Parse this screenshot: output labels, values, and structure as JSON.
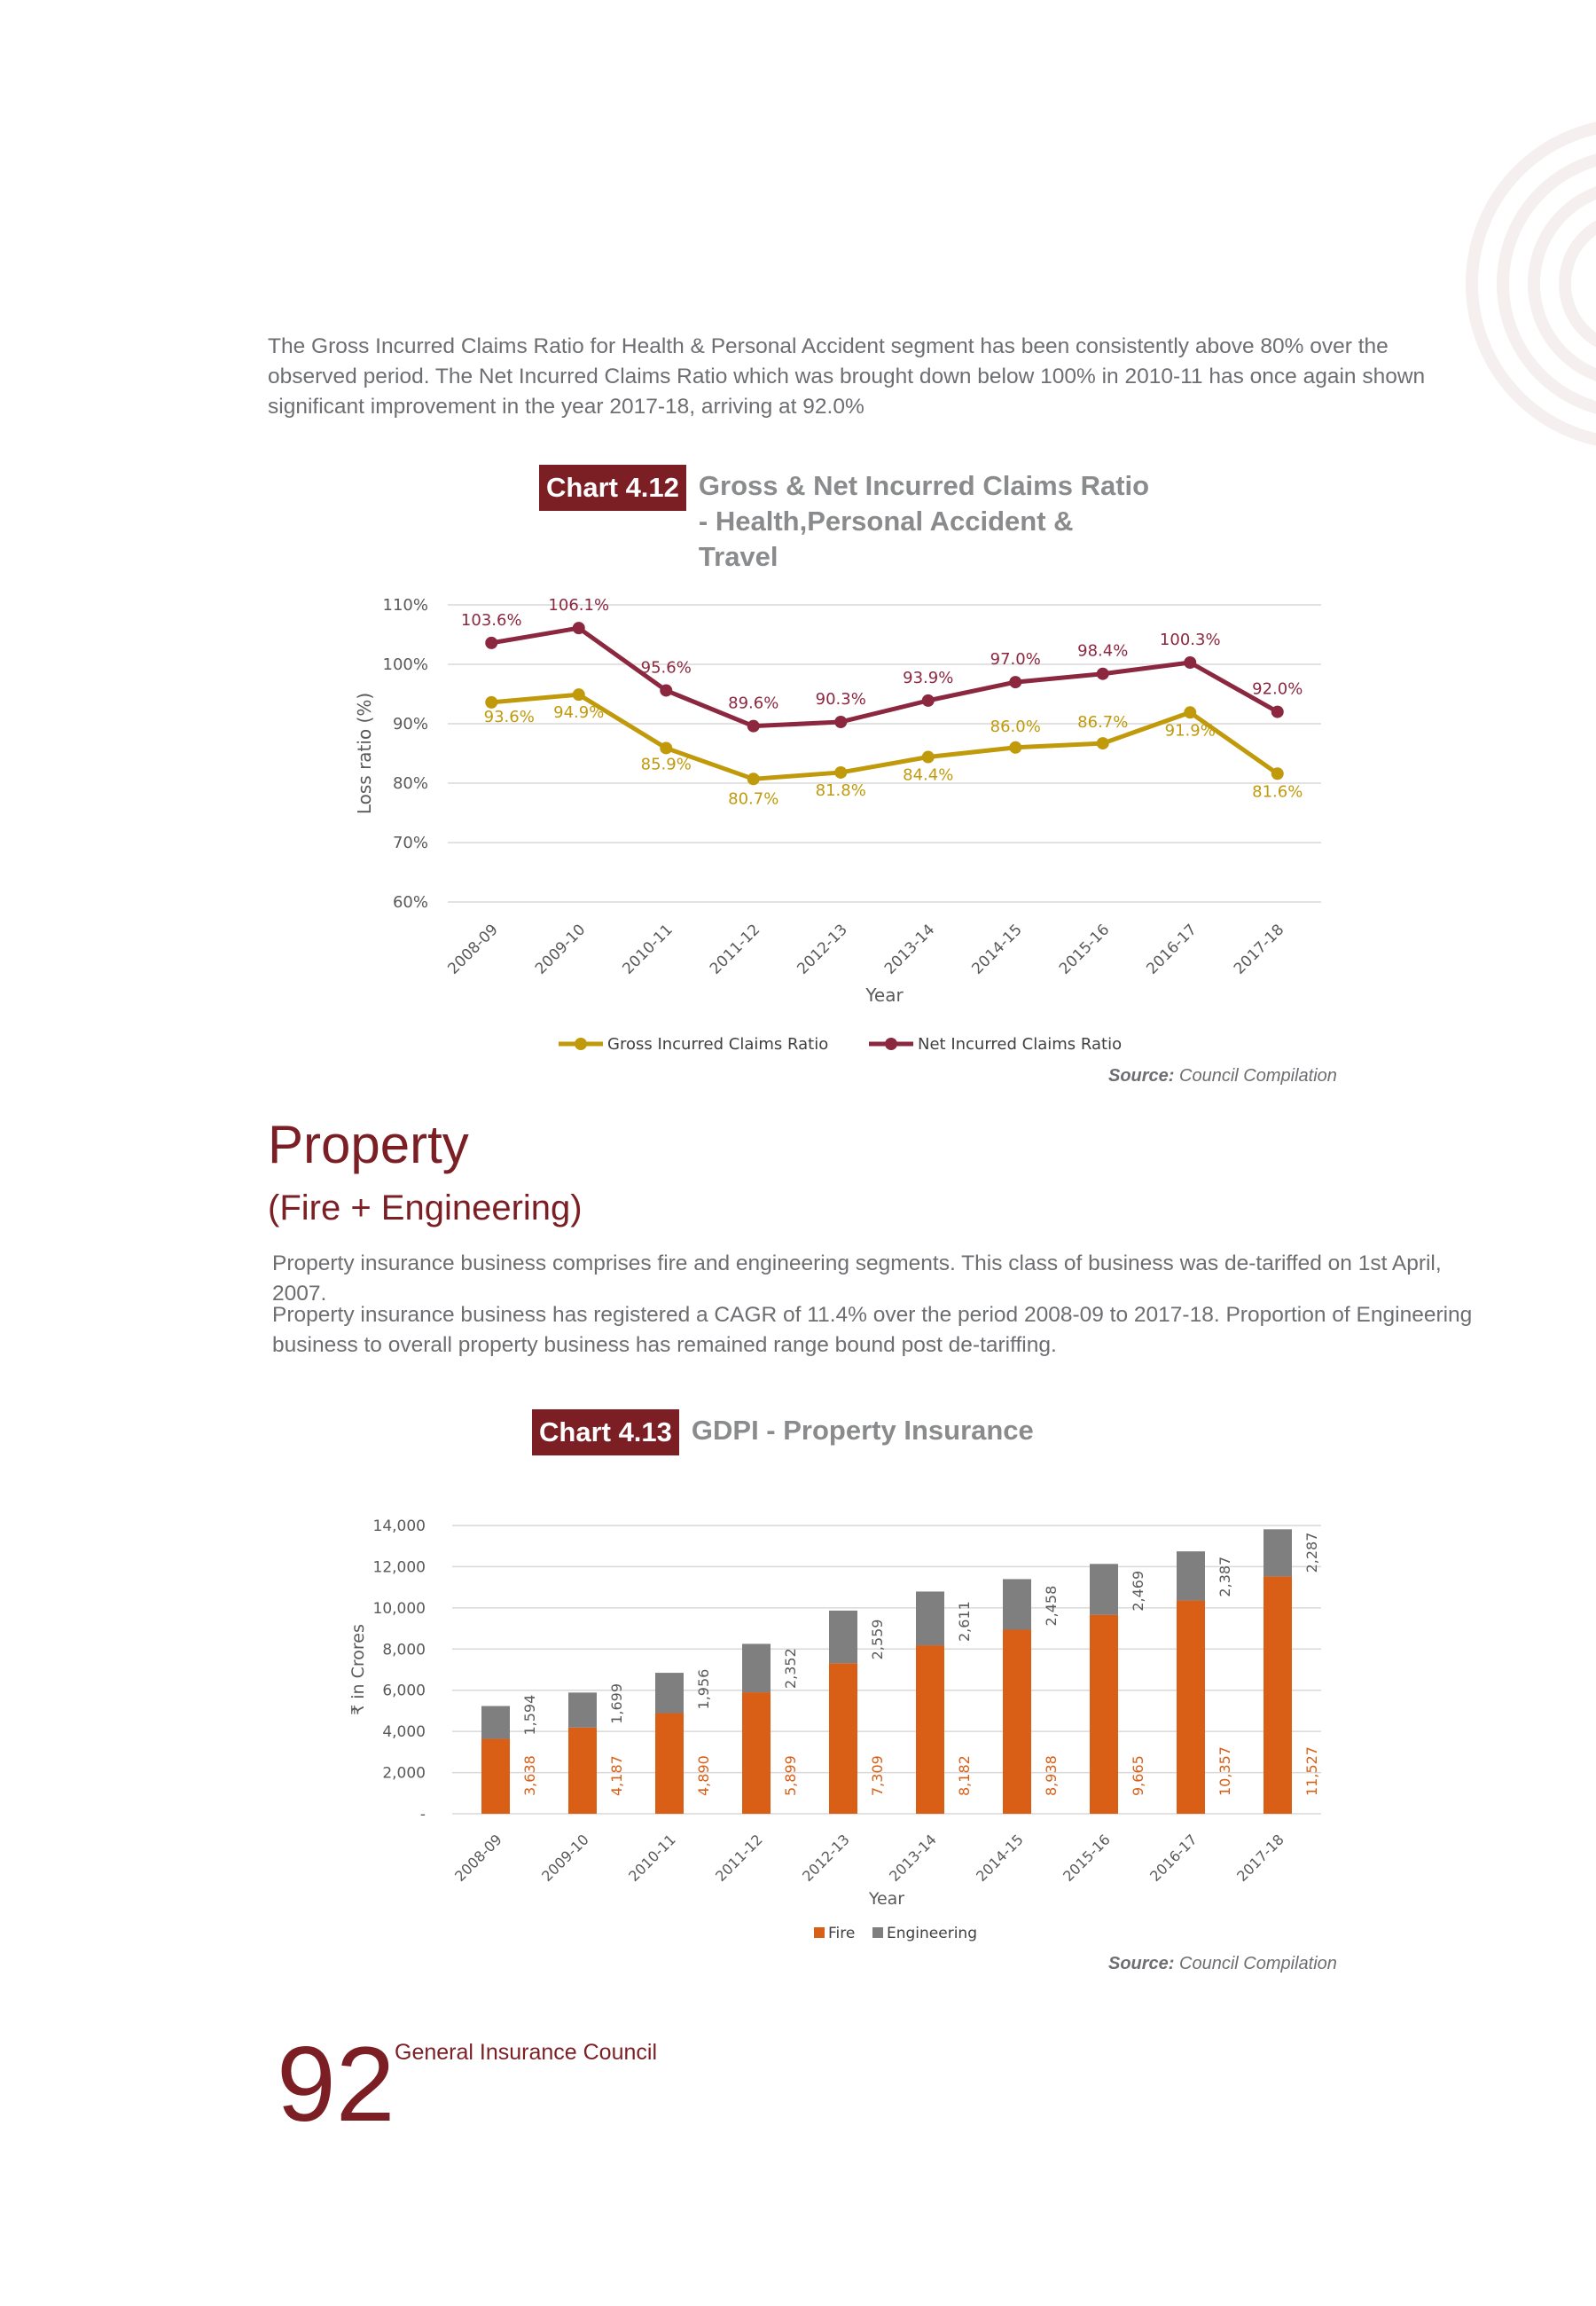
{
  "intro_text": "The Gross Incurred Claims Ratio for Health & Personal Accident segment has been consistently above 80% over the observed period. The Net Incurred Claims Ratio which was brought down below 100% in 2010-11 has once again shown significant improvement in the year 2017-18, arriving at 92.0%",
  "chart1_header": {
    "tag": "Chart 4.12",
    "title": "Gross & Net Incurred Claims Ratio - Health,Personal Accident & Travel"
  },
  "chart2_header": {
    "tag": "Chart 4.13",
    "title": "GDPI - Property Insurance"
  },
  "source": {
    "label": "Source:",
    "text": "Council Compilation"
  },
  "section": {
    "title": "Property",
    "subtitle": "(Fire + Engineering)",
    "paragraph1": "Property insurance business comprises fire and engineering segments. This class of business was de-tariffed on 1st April, 2007.",
    "paragraph2": "Property insurance business has registered a CAGR of 11.4% over the period 2008-09 to 2017-18. Proportion of Engineering business to overall property business has remained range bound post de-tariffing."
  },
  "footer": {
    "page_number": "92",
    "organization": "General Insurance Council"
  },
  "chart_data": [
    {
      "type": "line",
      "categories": [
        "2008-09",
        "2009-10",
        "2010-11",
        "2011-12",
        "2012-13",
        "2013-14",
        "2014-15",
        "2015-16",
        "2016-17",
        "2017-18"
      ],
      "series": [
        {
          "name": "Gross Incurred Claims Ratio",
          "color": "#c09a0b",
          "values": [
            93.6,
            94.9,
            85.9,
            80.7,
            81.8,
            84.4,
            86.0,
            86.7,
            91.9,
            81.6
          ],
          "labels": [
            "93.6%",
            "94.9%",
            "85.9%",
            "80.7%",
            "81.8%",
            "84.4%",
            "86.0%",
            "86.7%",
            "91.9%",
            "81.6%"
          ]
        },
        {
          "name": "Net Incurred Claims Ratio",
          "color": "#8b2840",
          "values": [
            103.6,
            106.1,
            95.6,
            89.6,
            90.3,
            93.9,
            97.0,
            98.4,
            100.3,
            92.0
          ],
          "labels": [
            "103.6%",
            "106.1%",
            "95.6%",
            "89.6%",
            "90.3%",
            "93.9%",
            "97.0%",
            "98.4%",
            "100.3%",
            "92.0%"
          ]
        }
      ],
      "xlabel": "Year",
      "ylabel": "Loss ratio (%)",
      "yticks": [
        "60%",
        "70%",
        "80%",
        "90%",
        "100%",
        "110%"
      ],
      "ylim": [
        60,
        110
      ],
      "grid": true,
      "legend": "bottom"
    },
    {
      "type": "bar",
      "stacked": true,
      "categories": [
        "2008-09",
        "2009-10",
        "2010-11",
        "2011-12",
        "2012-13",
        "2013-14",
        "2014-15",
        "2015-16",
        "2016-17",
        "2017-18"
      ],
      "series": [
        {
          "name": "Fire",
          "color": "#d95f17",
          "values": [
            3638,
            4187,
            4890,
            5899,
            7309,
            8182,
            8938,
            9665,
            10357,
            11527
          ],
          "labels": [
            "3,638",
            "4,187",
            "4,890",
            "5,899",
            "7,309",
            "8,182",
            "8,938",
            "9,665",
            "10,357",
            "11,527"
          ]
        },
        {
          "name": "Engineering",
          "color": "#7f7f7f",
          "values": [
            1594,
            1699,
            1956,
            2352,
            2559,
            2611,
            2458,
            2469,
            2387,
            2287
          ],
          "labels": [
            "1,594",
            "1,699",
            "1,956",
            "2,352",
            "2,559",
            "2,611",
            "2,458",
            "2,469",
            "2,387",
            "2,287"
          ]
        }
      ],
      "xlabel": "Year",
      "ylabel": "₹ in Crores",
      "yticks": [
        "-",
        "2,000",
        "4,000",
        "6,000",
        "8,000",
        "10,000",
        "12,000",
        "14,000"
      ],
      "ylim": [
        0,
        14000
      ],
      "grid": true,
      "legend": "bottom"
    }
  ]
}
